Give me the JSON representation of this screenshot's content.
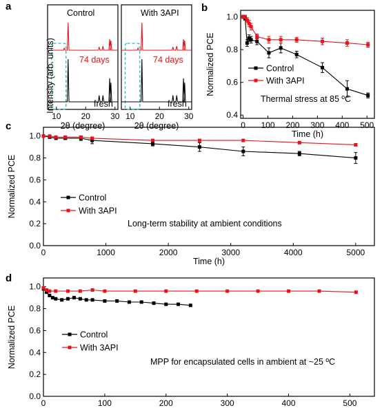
{
  "colors": {
    "control": "#000000",
    "api": "#e8121a",
    "highlight": "#27b4c2",
    "red_text": "#e8121a"
  },
  "chart_data": [
    {
      "panel": "a",
      "type": "line",
      "subpanels": [
        {
          "title": "Control",
          "curve_labels": [
            "74 days",
            "fresh"
          ]
        },
        {
          "title": "With 3API",
          "curve_labels": [
            "74 days",
            "fresh"
          ]
        }
      ],
      "x_ticks": [
        "10",
        "20",
        "30"
      ],
      "xlim": [
        7,
        31
      ],
      "xlabel": "2θ (degree)",
      "ylabel": "Intensity (arb. units)",
      "series": [
        {
          "name": "74 days",
          "color": "#e8121a",
          "peaks": [
            [
              12.7,
              0.08
            ],
            [
              14.0,
              1.0
            ],
            [
              24.6,
              0.12
            ],
            [
              25.9,
              0.15
            ],
            [
              28.2,
              0.4
            ],
            [
              28.6,
              0.35
            ],
            [
              31.5,
              0.25
            ]
          ]
        },
        {
          "name": "fresh",
          "color": "#000000",
          "peaks": [
            [
              14.0,
              1.0
            ],
            [
              24.6,
              0.15
            ],
            [
              25.9,
              0.15
            ],
            [
              28.2,
              0.55
            ],
            [
              28.6,
              0.45
            ],
            [
              31.5,
              0.3
            ]
          ]
        }
      ]
    },
    {
      "panel": "b",
      "type": "line",
      "xlabel": "Time (h)",
      "ylabel": "Normalized PCE",
      "xlim": [
        -10,
        530
      ],
      "ylim": [
        0.38,
        1.04
      ],
      "x_ticks": [
        "0",
        "100",
        "200",
        "300",
        "400",
        "500"
      ],
      "y_ticks": [
        "0.4",
        "0.6",
        "0.8",
        "1.0"
      ],
      "annotation": "Thermal stress at 85 ºC",
      "series": [
        {
          "name": "Control",
          "color": "#000000",
          "x": [
            0,
            8,
            16,
            24,
            32,
            56,
            104,
            152,
            216,
            320,
            420,
            504
          ],
          "y": [
            1.0,
            0.99,
            0.84,
            0.87,
            0.86,
            0.85,
            0.78,
            0.81,
            0.77,
            0.69,
            0.56,
            0.52
          ],
          "err": [
            0.01,
            0.01,
            0.02,
            0.02,
            0.02,
            0.02,
            0.03,
            0.03,
            0.02,
            0.03,
            0.05,
            0.015
          ]
        },
        {
          "name": "With 3API",
          "color": "#e8121a",
          "x": [
            0,
            8,
            16,
            24,
            32,
            56,
            104,
            152,
            216,
            320,
            420,
            504
          ],
          "y": [
            1.0,
            1.0,
            0.98,
            0.96,
            0.94,
            0.88,
            0.86,
            0.86,
            0.86,
            0.85,
            0.84,
            0.83
          ],
          "err": [
            0.01,
            0.01,
            0.015,
            0.02,
            0.02,
            0.015,
            0.02,
            0.02,
            0.015,
            0.02,
            0.02,
            0.015
          ]
        }
      ]
    },
    {
      "panel": "c",
      "type": "line",
      "xlabel": "Time (h)",
      "ylabel": "Normalized PCE",
      "xlim": [
        0,
        5300
      ],
      "ylim": [
        0,
        1.08
      ],
      "x_ticks": [
        "0",
        "1000",
        "2000",
        "3000",
        "4000",
        "5000"
      ],
      "y_ticks": [
        "0.0",
        "0.2",
        "0.4",
        "0.6",
        "0.8",
        "1.0"
      ],
      "annotation": "Long-term stability at ambient conditions",
      "series": [
        {
          "name": "Control",
          "color": "#000000",
          "x": [
            0,
            100,
            200,
            350,
            600,
            780,
            1750,
            2500,
            3200,
            4100,
            5000
          ],
          "y": [
            1.0,
            0.99,
            0.98,
            0.98,
            0.98,
            0.96,
            0.93,
            0.9,
            0.86,
            0.84,
            0.8
          ],
          "err": [
            0.01,
            0.01,
            0.01,
            0.01,
            0.02,
            0.03,
            0.02,
            0.04,
            0.04,
            0.02,
            0.05
          ]
        },
        {
          "name": "With 3API",
          "color": "#e8121a",
          "x": [
            0,
            100,
            200,
            350,
            600,
            780,
            1750,
            2500,
            3200,
            4100,
            5000
          ],
          "y": [
            1.0,
            1.0,
            0.99,
            0.99,
            0.99,
            0.98,
            0.96,
            0.96,
            0.96,
            0.94,
            0.92
          ],
          "err": [
            0.005,
            0.005,
            0.005,
            0.005,
            0.01,
            0.01,
            0.01,
            0.01,
            0.01,
            0.01,
            0.01
          ]
        }
      ]
    },
    {
      "panel": "d",
      "type": "line",
      "xlabel": "Time (h)",
      "ylabel": "Normalized PCE",
      "xlim": [
        0,
        540
      ],
      "ylim": [
        0,
        1.08
      ],
      "x_ticks": [
        "0",
        "100",
        "200",
        "300",
        "400",
        "500"
      ],
      "y_ticks": [
        "0.0",
        "0.2",
        "0.4",
        "0.6",
        "0.8",
        "1.0"
      ],
      "annotation": "MPP for encapsulated cells in ambient  at ~25 ºC",
      "series": [
        {
          "name": "Control",
          "color": "#000000",
          "x": [
            0,
            5,
            10,
            15,
            20,
            30,
            40,
            50,
            60,
            70,
            80,
            100,
            120,
            140,
            160,
            180,
            200,
            220,
            240
          ],
          "y": [
            0.98,
            0.95,
            0.92,
            0.9,
            0.89,
            0.88,
            0.89,
            0.9,
            0.89,
            0.88,
            0.88,
            0.87,
            0.87,
            0.86,
            0.86,
            0.85,
            0.84,
            0.84,
            0.83
          ]
        },
        {
          "name": "With 3API",
          "color": "#e8121a",
          "x": [
            0,
            5,
            10,
            20,
            40,
            60,
            80,
            100,
            150,
            200,
            250,
            300,
            350,
            400,
            450,
            510
          ],
          "y": [
            0.99,
            0.97,
            0.96,
            0.96,
            0.96,
            0.96,
            0.97,
            0.96,
            0.96,
            0.96,
            0.96,
            0.96,
            0.96,
            0.96,
            0.96,
            0.95
          ]
        }
      ]
    }
  ],
  "panel_labels": {
    "a": "a",
    "b": "b",
    "c": "c",
    "d": "d"
  }
}
